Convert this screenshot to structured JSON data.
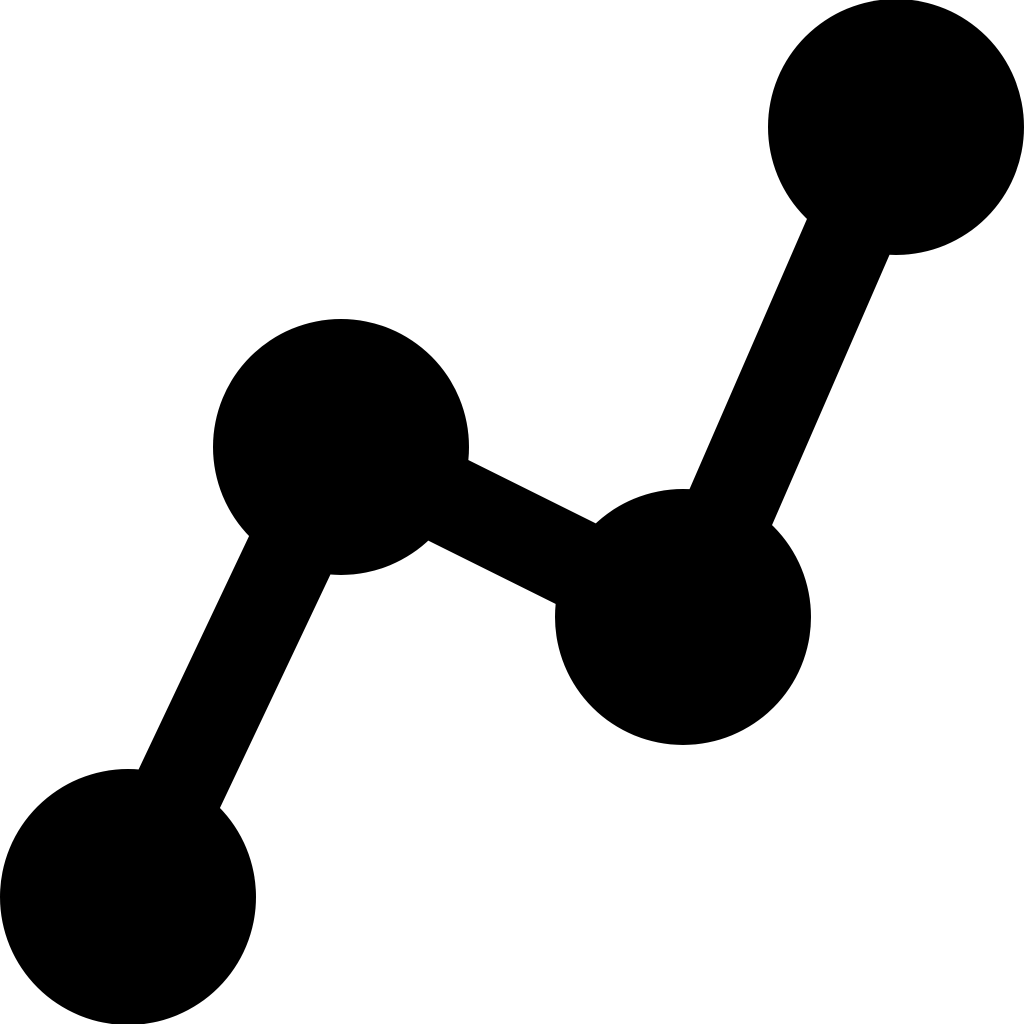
{
  "icon": {
    "name": "line-chart-icon",
    "color": "#000000",
    "background": "#ffffff"
  }
}
